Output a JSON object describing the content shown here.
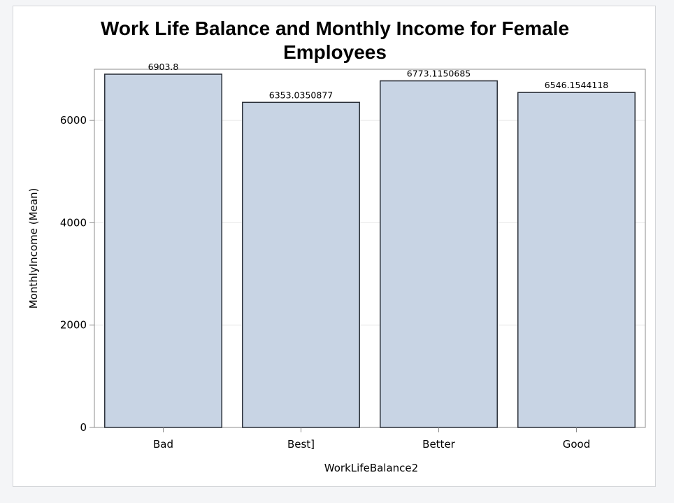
{
  "chart_data": {
    "type": "bar",
    "title_lines": [
      "Work Life Balance and Monthly Income for Female",
      "Employees"
    ],
    "xlabel": "WorkLifeBalance2",
    "ylabel": "MonthlyIncome (Mean)",
    "categories": [
      "Bad",
      "Best]",
      "Better",
      "Good"
    ],
    "values": [
      6903.8,
      6353.0350877,
      6773.1150685,
      6546.1544118
    ],
    "value_labels": [
      "6903.8",
      "6353.0350877",
      "6773.1150685",
      "6546.1544118"
    ],
    "ylim": [
      0,
      7000
    ],
    "yticks": [
      0,
      2000,
      4000,
      6000
    ],
    "grid": true,
    "legend": "none",
    "colors": {
      "bar_fill": "#c8d4e4",
      "bar_stroke": "#2a2f38",
      "axis": "#8c8c8c",
      "grid": "#e6e6e6"
    }
  }
}
